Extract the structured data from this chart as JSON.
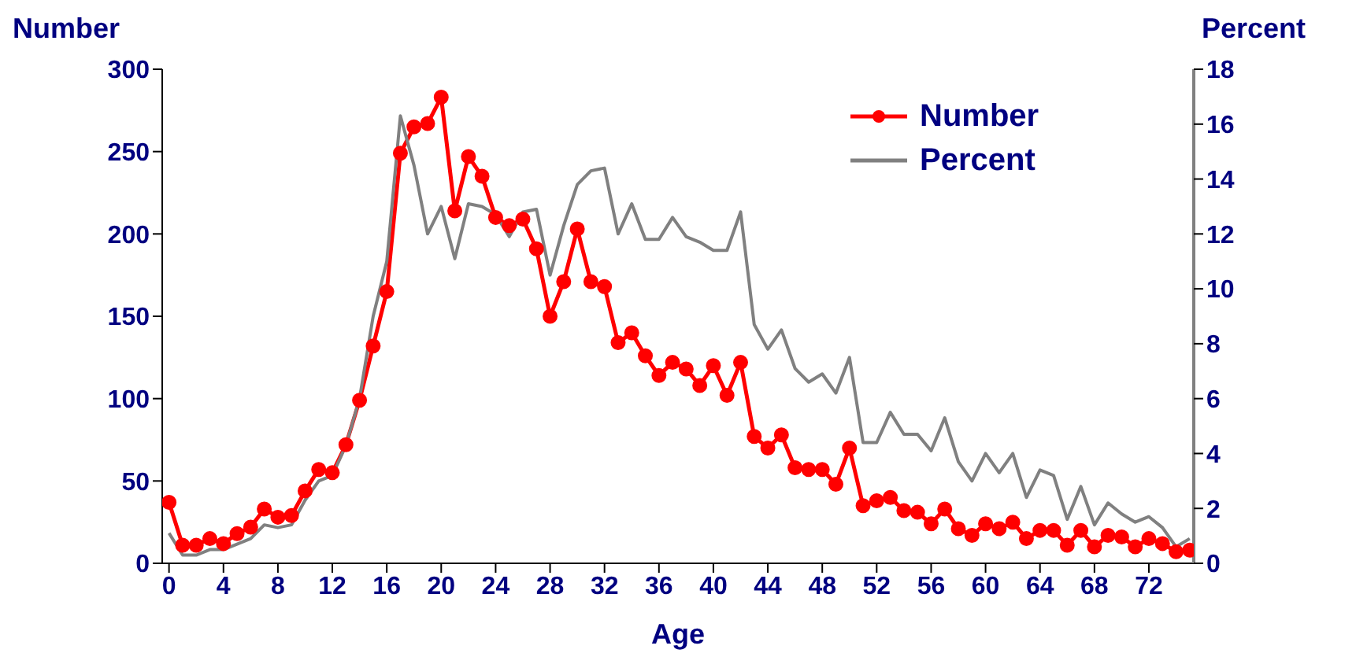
{
  "chart_data": {
    "type": "line",
    "xlabel": "Age",
    "ylabel": "Number",
    "y2label": "Percent",
    "x": [
      0,
      1,
      2,
      3,
      4,
      5,
      6,
      7,
      8,
      9,
      10,
      11,
      12,
      13,
      14,
      15,
      16,
      17,
      18,
      19,
      20,
      21,
      22,
      23,
      24,
      25,
      26,
      27,
      28,
      29,
      30,
      31,
      32,
      33,
      34,
      35,
      36,
      37,
      38,
      39,
      40,
      41,
      42,
      43,
      44,
      45,
      46,
      47,
      48,
      49,
      50,
      51,
      52,
      53,
      54,
      55,
      56,
      57,
      58,
      59,
      60,
      61,
      62,
      63,
      64,
      65,
      66,
      67,
      68,
      69,
      70,
      71,
      72,
      73,
      74,
      75
    ],
    "series": [
      {
        "name": "Number",
        "color": "#ff0000",
        "marker": "circle",
        "values": [
          37,
          11,
          11,
          15,
          12,
          18,
          22,
          33,
          28,
          29,
          44,
          57,
          55,
          72,
          99,
          132,
          165,
          249,
          265,
          267,
          283,
          214,
          247,
          235,
          210,
          205,
          209,
          191,
          150,
          171,
          203,
          171,
          168,
          134,
          140,
          126,
          114,
          122,
          118,
          108,
          120,
          102,
          122,
          77,
          70,
          78,
          58,
          57,
          57,
          48,
          70,
          35,
          38,
          40,
          32,
          31,
          24,
          33,
          21,
          17,
          24,
          21,
          25,
          15,
          20,
          20,
          11,
          20,
          10,
          17,
          16,
          10,
          15,
          12,
          7,
          8
        ]
      },
      {
        "name": "Percent",
        "color": "#808080",
        "marker": "none",
        "axis": "y2",
        "values": [
          1.1,
          0.3,
          0.3,
          0.5,
          0.5,
          0.7,
          0.9,
          1.4,
          1.3,
          1.4,
          2.3,
          3.0,
          3.2,
          4.3,
          6.0,
          9.0,
          11.0,
          16.3,
          14.5,
          12.0,
          13.0,
          11.1,
          13.1,
          13.0,
          12.7,
          11.9,
          12.8,
          12.9,
          10.5,
          12.3,
          13.8,
          14.3,
          14.4,
          12.0,
          13.1,
          11.8,
          11.8,
          12.6,
          11.9,
          11.7,
          11.4,
          11.4,
          12.8,
          8.7,
          7.8,
          8.5,
          7.1,
          6.6,
          6.9,
          6.2,
          7.5,
          4.4,
          4.4,
          5.5,
          4.7,
          4.7,
          4.1,
          5.3,
          3.7,
          3.0,
          4.0,
          3.3,
          4.0,
          2.4,
          3.4,
          3.2,
          1.6,
          2.8,
          1.4,
          2.2,
          1.8,
          1.5,
          1.7,
          1.3,
          0.6,
          0.9
        ]
      }
    ],
    "xlim": [
      -0.5,
      75.3
    ],
    "xticks": [
      0,
      4,
      8,
      12,
      16,
      20,
      24,
      28,
      32,
      36,
      40,
      44,
      48,
      52,
      56,
      60,
      64,
      68,
      72
    ],
    "ylim": [
      0,
      300
    ],
    "yticks": [
      0,
      50,
      100,
      150,
      200,
      250,
      300
    ],
    "y2lim": [
      0,
      18
    ],
    "y2ticks": [
      0,
      2,
      4,
      6,
      8,
      10,
      12,
      14,
      16,
      18
    ],
    "grid": false,
    "legend": "top right",
    "line_style": "solid"
  }
}
